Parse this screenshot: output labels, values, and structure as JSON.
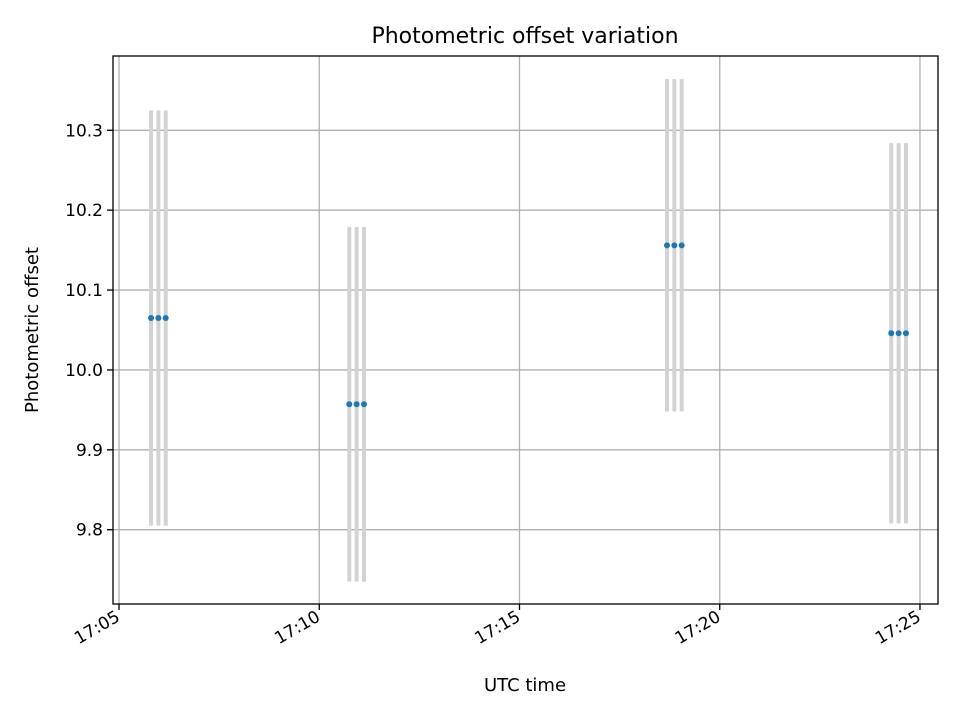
{
  "chart_data": {
    "type": "scatter",
    "title": "Photometric offset variation",
    "xlabel": "UTC time",
    "ylabel": "Photometric offset",
    "x_ticks": [
      "17:05",
      "17:10",
      "17:15",
      "17:20",
      "17:25"
    ],
    "y_ticks": [
      "9.8",
      "9.9",
      "10.0",
      "10.1",
      "10.2",
      "10.3"
    ],
    "xlim": [
      "17:04:51",
      "17:25:27"
    ],
    "ylim": [
      9.707,
      10.393
    ],
    "grid": true,
    "colors": {
      "points": "#1f77b4",
      "error_bars": "#d3d3d3",
      "grid": "#b0b0b0"
    },
    "groups": [
      {
        "y": 10.065,
        "error": 0.26,
        "points": [
          {
            "x": "17:05:48",
            "y": 10.065
          },
          {
            "x": "17:05:59",
            "y": 10.065
          },
          {
            "x": "17:06:10",
            "y": 10.065
          }
        ]
      },
      {
        "y": 9.957,
        "error": 0.222,
        "points": [
          {
            "x": "17:10:45",
            "y": 9.957
          },
          {
            "x": "17:10:56",
            "y": 9.957
          },
          {
            "x": "17:11:07",
            "y": 9.957
          }
        ]
      },
      {
        "y": 10.156,
        "error": 0.208,
        "points": [
          {
            "x": "17:18:41",
            "y": 10.156
          },
          {
            "x": "17:18:52",
            "y": 10.156
          },
          {
            "x": "17:19:03",
            "y": 10.156
          }
        ]
      },
      {
        "y": 10.046,
        "error": 0.238,
        "points": [
          {
            "x": "17:24:17",
            "y": 10.046
          },
          {
            "x": "17:24:28",
            "y": 10.046
          },
          {
            "x": "17:24:39",
            "y": 10.046
          }
        ]
      }
    ]
  }
}
